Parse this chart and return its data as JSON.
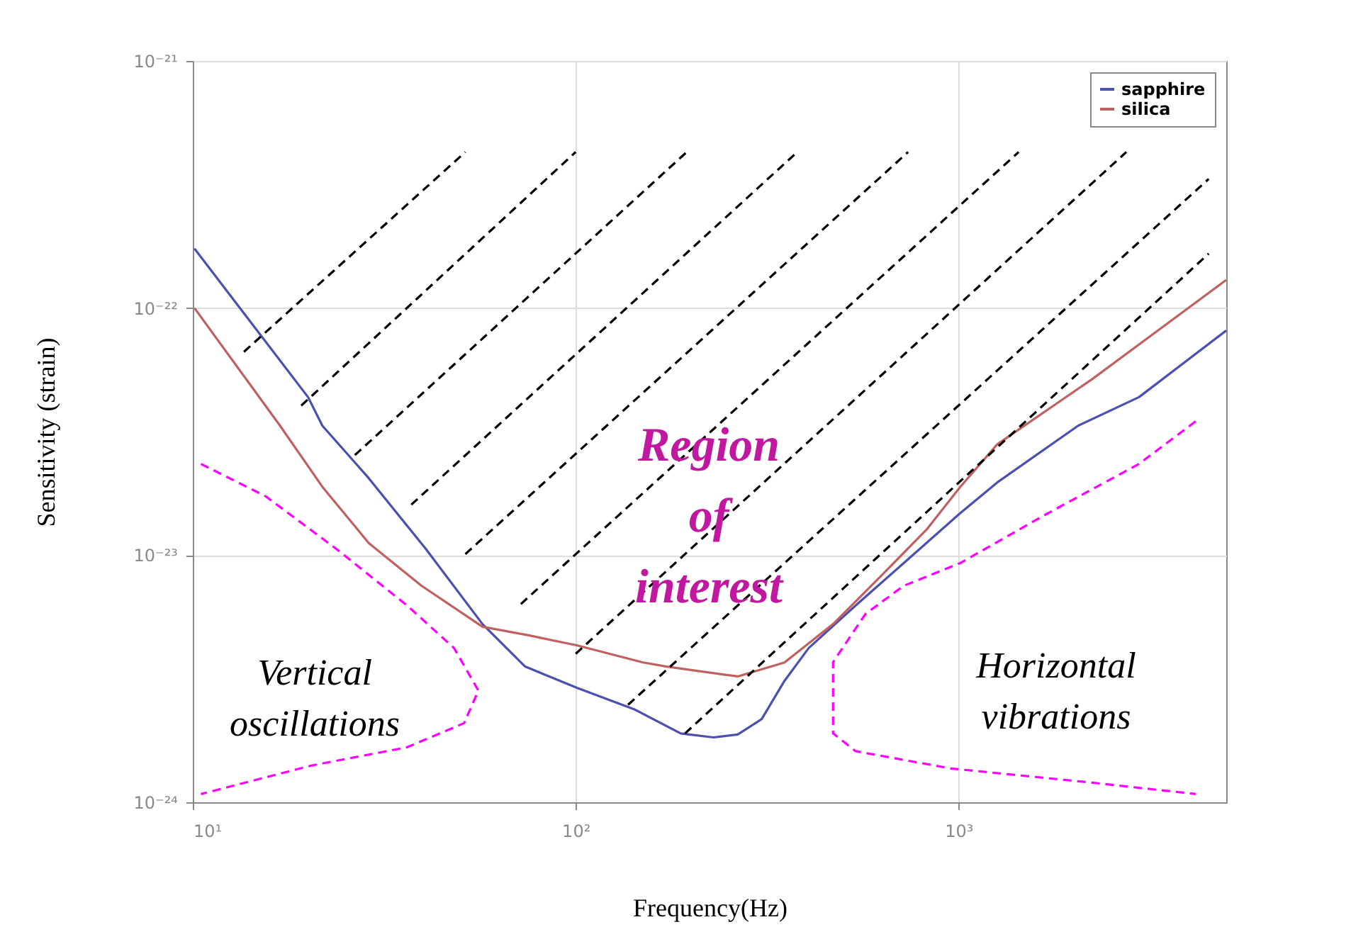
{
  "chart_data": {
    "type": "line",
    "xlabel": "Frequency(Hz)",
    "ylabel": "Sensitivity (strain)",
    "log": "xy",
    "grid": true,
    "legend": "top right",
    "xlim": [
      10,
      5000
    ],
    "xticks": [
      {
        "value": 10,
        "label": "10¹"
      },
      {
        "value": 100,
        "label": "10²"
      },
      {
        "value": 1000,
        "label": "10³"
      }
    ],
    "ylim": [
      1e-24,
      1e-21
    ],
    "yticks": [
      {
        "value": 1e-24,
        "label": "10⁻²⁴"
      },
      {
        "value": 1e-23,
        "label": "10⁻²³"
      },
      {
        "value": 1e-22,
        "label": "10⁻²²"
      },
      {
        "value": 1e-21,
        "label": "10⁻²¹"
      }
    ],
    "series": [
      {
        "name": "sapphire",
        "color": "#4a4fb0",
        "x": [
          10.1,
          20,
          21.8,
          28.8,
          40.6,
          57.1,
          73.8,
          101,
          142,
          188,
          229,
          265,
          306,
          351,
          406,
          538,
          719,
          1010,
          1262,
          2051,
          2958,
          5000
        ],
        "values": [
          1.74e-22,
          4.36e-23,
          3.34e-23,
          2.05e-23,
          1.06e-23,
          5.26e-24,
          3.54e-24,
          2.9e-24,
          2.38e-24,
          1.9e-24,
          1.83e-24,
          1.88e-24,
          2.17e-24,
          3.1e-24,
          4.21e-24,
          6.25e-24,
          9.29e-24,
          1.48e-23,
          1.97e-23,
          3.34e-23,
          4.36e-23,
          8.11e-23
        ]
      },
      {
        "name": "silica",
        "color": "#c06060",
        "x": [
          10.1,
          16.9,
          21.8,
          28.8,
          39.5,
          57.1,
          75.7,
          101,
          150,
          173,
          265,
          351,
          470,
          622,
          825,
          1010,
          1262,
          2234,
          5000
        ],
        "values": [
          1e-22,
          3.34e-23,
          1.89e-23,
          1.12e-23,
          7.53e-24,
          5.13e-24,
          4.73e-24,
          4.31e-24,
          3.68e-24,
          3.54e-24,
          3.23e-24,
          3.68e-24,
          5.26e-24,
          8.13e-24,
          1.27e-23,
          1.89e-23,
          2.81e-23,
          5.16e-23,
          1.3e-22
        ]
      },
      {
        "color": "#000000",
        "line_style": "dashed",
        "x": [
          13.6,
          51.5
        ],
        "values": [
          6.65e-23,
          4.28e-22
        ]
      },
      {
        "color": "#000000",
        "line_style": "dashed",
        "x": [
          19.2,
          100
        ],
        "values": [
          4.03e-23,
          4.28e-22
        ]
      },
      {
        "color": "#000000",
        "line_style": "dashed",
        "x": [
          26.5,
          195
        ],
        "values": [
          2.54e-23,
          4.28e-22
        ]
      },
      {
        "color": "#000000",
        "line_style": "dashed",
        "x": [
          37.2,
          379
        ],
        "values": [
          1.6e-23,
          4.28e-22
        ]
      },
      {
        "color": "#000000",
        "line_style": "dashed",
        "x": [
          51.5,
          738
        ],
        "values": [
          1.01e-23,
          4.28e-22
        ]
      },
      {
        "color": "#000000",
        "line_style": "dashed",
        "x": [
          71.9,
          1435
        ],
        "values": [
          6.34e-24,
          4.28e-22
        ]
      },
      {
        "color": "#000000",
        "line_style": "dashed",
        "x": [
          100,
          2742
        ],
        "values": [
          3.99e-24,
          4.28e-22
        ]
      },
      {
        "color": "#000000",
        "line_style": "dashed",
        "x": [
          137,
          4500
        ],
        "values": [
          2.48e-24,
          3.33e-22
        ]
      },
      {
        "color": "#000000",
        "line_style": "dashed",
        "x": [
          193,
          4500
        ],
        "values": [
          1.9e-24,
          1.66e-22
        ]
      },
      {
        "color": "#ff00ff",
        "line_style": "dashed",
        "x": [
          10.5,
          15.5,
          23.7,
          36.3,
          48.1,
          55.7,
          51.1,
          36.3,
          20.5,
          10.5
        ],
        "values": [
          2.34e-23,
          1.73e-23,
          1.06e-23,
          6.25e-24,
          4.21e-24,
          2.83e-24,
          2.09e-24,
          1.67e-24,
          1.41e-24,
          1.08e-24
        ]
      },
      {
        "color": "#ff00ff",
        "line_style": "dashed",
        "x": [
          4160,
          2958,
          1687,
          1010,
          719,
          571,
          470,
          470,
          538,
          953,
          2234,
          4160
        ],
        "values": [
          3.48e-23,
          2.34e-23,
          1.46e-23,
          9.29e-24,
          7.52e-24,
          5.78e-24,
          3.69e-24,
          1.9e-24,
          1.61e-24,
          1.37e-24,
          1.2e-24,
          1.08e-24
        ]
      }
    ],
    "annotations": [
      "Region\nof\ninterest",
      "Vertical\noscillations",
      "Horizontal\nvibrations"
    ]
  }
}
